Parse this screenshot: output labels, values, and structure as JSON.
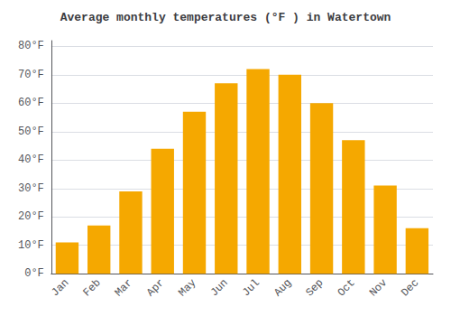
{
  "chart_data": {
    "type": "bar",
    "title": "Average monthly temperatures (°F ) in Watertown",
    "categories": [
      "Jan",
      "Feb",
      "Mar",
      "Apr",
      "May",
      "Jun",
      "Jul",
      "Aug",
      "Sep",
      "Oct",
      "Nov",
      "Dec"
    ],
    "values": [
      11,
      17,
      29,
      44,
      57,
      67,
      72,
      70,
      60,
      47,
      31,
      16
    ],
    "color": "#F5A800",
    "ylim": [
      0,
      82
    ],
    "yticks": [
      {
        "value": 0,
        "label": "0°F"
      },
      {
        "value": 10,
        "label": "10°F"
      },
      {
        "value": 20,
        "label": "20°F"
      },
      {
        "value": 30,
        "label": "30°F"
      },
      {
        "value": 40,
        "label": "40°F"
      },
      {
        "value": 50,
        "label": "50°F"
      },
      {
        "value": 60,
        "label": "60°F"
      },
      {
        "value": 70,
        "label": "70°F"
      },
      {
        "value": 80,
        "label": "80°F"
      }
    ],
    "grid": true
  }
}
